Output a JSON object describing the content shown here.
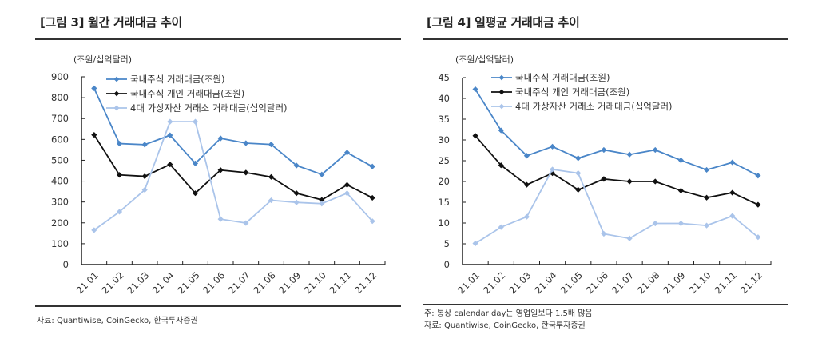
{
  "colors": {
    "domestic_total": "#4a86c8",
    "domestic_individual": "#111111",
    "crypto": "#aac4ea"
  },
  "legend": [
    "국내주식 거래대금(조원)",
    "국내주식 개인 거래대금(조원)",
    "4대 가상자산 거래소 거래대금(십억달러)"
  ],
  "panels": [
    {
      "title": "[그림 3] 월간 거래대금 추이",
      "unit": "(조원/십억달러)",
      "notes": [
        "자료: Quantiwise, CoinGecko, 한국투자증권"
      ]
    },
    {
      "title": "[그림 4] 일평균 거래대금 추이",
      "unit": "(조원/십억달러)",
      "notes": [
        "주: 통상 calendar day는 영업일보다 1.5배 많음",
        "자료: Quantiwise, CoinGecko, 한국투자증권"
      ]
    }
  ],
  "chart_data": [
    {
      "type": "line",
      "title": "[그림 3] 월간 거래대금 추이",
      "ylabel": "(조원/십억달러)",
      "xlabel": "",
      "categories": [
        "21.01",
        "21.02",
        "21.03",
        "21.04",
        "21.05",
        "21.06",
        "21.07",
        "21.08",
        "21.09",
        "21.10",
        "21.11",
        "21.12"
      ],
      "ylim": [
        0,
        900
      ],
      "yticks": [
        0,
        100,
        200,
        300,
        400,
        500,
        600,
        700,
        800,
        900
      ],
      "legend_position": "top-right",
      "grid": false,
      "series": [
        {
          "name": "국내주식 거래대금(조원)",
          "values": [
            845,
            580,
            575,
            620,
            485,
            605,
            582,
            576,
            475,
            432,
            537,
            470
          ]
        },
        {
          "name": "국내주식 개인 거래대금(조원)",
          "values": [
            622,
            430,
            423,
            480,
            342,
            453,
            441,
            420,
            342,
            310,
            382,
            320
          ]
        },
        {
          "name": "4대 가상자산 거래소 거래대금(십억달러)",
          "values": [
            165,
            253,
            358,
            685,
            685,
            218,
            199,
            308,
            298,
            292,
            342,
            208
          ]
        }
      ]
    },
    {
      "type": "line",
      "title": "[그림 4] 일평균 거래대금 추이",
      "ylabel": "(조원/십억달러)",
      "xlabel": "",
      "categories": [
        "21.01",
        "21.02",
        "21.03",
        "21.04",
        "21.05",
        "21.06",
        "21.07",
        "21.08",
        "21.09",
        "21.10",
        "21.11",
        "21.12"
      ],
      "ylim": [
        0,
        45
      ],
      "yticks": [
        0,
        5,
        10,
        15,
        20,
        25,
        30,
        35,
        40,
        45
      ],
      "legend_position": "top-right",
      "grid": false,
      "series": [
        {
          "name": "국내주식 거래대금(조원)",
          "values": [
            42.2,
            32.3,
            26.2,
            28.4,
            25.6,
            27.6,
            26.5,
            27.6,
            25.1,
            22.8,
            24.6,
            21.4
          ]
        },
        {
          "name": "국내주식 개인 거래대금(조원)",
          "values": [
            31.0,
            23.9,
            19.2,
            22.0,
            18.0,
            20.6,
            20.0,
            20.0,
            17.8,
            16.1,
            17.3,
            14.4
          ]
        },
        {
          "name": "4대 가상자산 거래소 거래대금(십억달러)",
          "values": [
            5.1,
            9.0,
            11.5,
            22.9,
            22.0,
            7.4,
            6.3,
            9.9,
            9.9,
            9.4,
            11.7,
            6.6
          ]
        }
      ]
    }
  ]
}
